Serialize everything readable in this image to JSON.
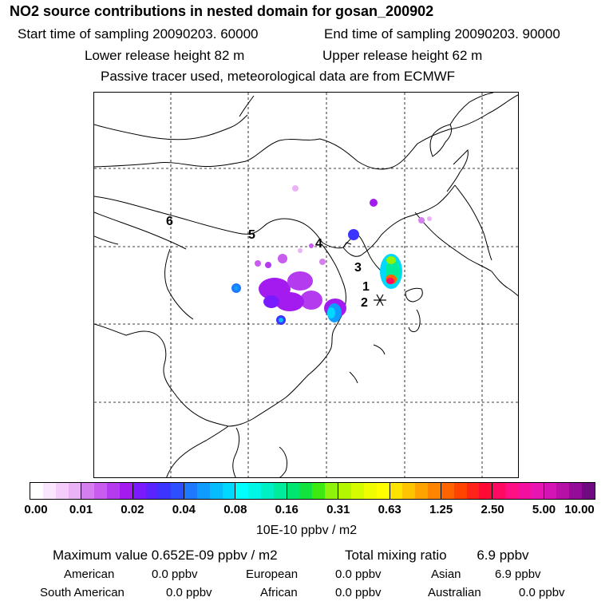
{
  "header": {
    "title": "NO2 source contributions in nested domain for gosan_200902",
    "start_time": "Start time of sampling 20090203. 60000",
    "end_time": "End time of sampling 20090203. 90000",
    "lower_height": "Lower release height   82 m",
    "upper_height": "Upper release height   62 m",
    "info": "Passive tracer used, meteorological data are from ECMWF"
  },
  "map": {
    "labels": [
      "1",
      "2",
      "3",
      "4",
      "5",
      "6"
    ],
    "receptor_marker": "star-icon"
  },
  "colorbar": {
    "ticks": [
      "0.00",
      "0.01",
      "0.02",
      "0.04",
      "0.08",
      "0.16",
      "0.31",
      "0.63",
      "1.25",
      "2.50",
      "5.00",
      "10.00"
    ],
    "units": "10E-10 ppbv / m2",
    "colors": [
      [
        "#ffffff",
        "#fbe6ff",
        "#f4cdfb",
        "#eab2f7"
      ],
      [
        "#d57ef0",
        "#c75cee",
        "#b53cee",
        "#a31bee"
      ],
      [
        "#7a1bff",
        "#5a24ff",
        "#3c34ff",
        "#2c4fff"
      ],
      [
        "#1f79ff",
        "#0f9cff",
        "#06bcff",
        "#00d8ff"
      ],
      [
        "#00ffff",
        "#00f7e6",
        "#00f0c6",
        "#00ec9a"
      ],
      [
        "#00e56f",
        "#12e23d",
        "#3cea11",
        "#8ef20a"
      ],
      [
        "#b4f600",
        "#d6fa00",
        "#f0fc00",
        "#ffff00"
      ],
      [
        "#ffe300",
        "#ffc400",
        "#ffa300",
        "#ff8400"
      ],
      [
        "#ff6400",
        "#ff4400",
        "#ff2418",
        "#ff0a34"
      ],
      [
        "#ff0a62",
        "#ff0f84",
        "#f50f9e",
        "#e815b4"
      ],
      [
        "#d514b6",
        "#b710a8",
        "#950c98",
        "#6f0a80"
      ]
    ]
  },
  "stats": {
    "max_value": "Maximum value  0.652E-09 ppbv / m2",
    "total": "Total mixing ratio        6.9 ppbv"
  },
  "regions": {
    "american": {
      "name": "American",
      "value": "0.0 ppbv"
    },
    "european": {
      "name": "European",
      "value": "0.0 ppbv"
    },
    "asian": {
      "name": "Asian",
      "value": "6.9 ppbv"
    },
    "south_american": {
      "name": "South American",
      "value": "0.0 ppbv"
    },
    "african": {
      "name": "African",
      "value": "0.0 ppbv"
    },
    "australian": {
      "name": "Australian",
      "value": "0.0 ppbv"
    }
  }
}
